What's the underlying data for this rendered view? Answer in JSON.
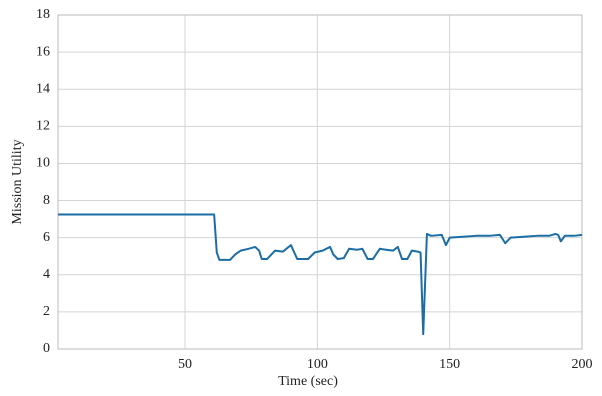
{
  "chart_data": {
    "type": "line",
    "x_label": "Time (sec)",
    "y_label": "Mission Utility",
    "x": [
      2,
      61,
      62,
      63,
      67,
      69,
      71,
      74,
      76.5,
      78,
      79,
      81,
      84,
      87,
      90,
      92.4,
      96.5,
      99,
      102,
      104.8,
      106,
      107.7,
      110,
      112,
      115,
      117,
      119,
      121,
      123.6,
      126,
      128.6,
      130.4,
      132,
      134,
      135.7,
      138,
      139,
      140,
      141.4,
      143,
      147,
      148.6,
      150,
      155,
      160,
      165,
      169,
      171,
      173,
      178,
      183,
      187.6,
      190,
      191,
      192,
      193.5,
      197,
      200
    ],
    "series": [
      {
        "name": "Mission Utility",
        "color": "#1b6ea5",
        "values": [
          7.25,
          7.25,
          5.2,
          4.8,
          4.8,
          5.1,
          5.3,
          5.4,
          5.5,
          5.3,
          4.85,
          4.85,
          5.3,
          5.25,
          5.6,
          4.85,
          4.85,
          5.2,
          5.3,
          5.5,
          5.1,
          4.85,
          4.9,
          5.4,
          5.35,
          5.4,
          4.85,
          4.85,
          5.4,
          5.35,
          5.3,
          5.5,
          4.85,
          4.85,
          5.3,
          5.25,
          5.2,
          0.8,
          6.2,
          6.1,
          6.15,
          5.6,
          6.0,
          6.05,
          6.1,
          6.1,
          6.15,
          5.7,
          6.0,
          6.05,
          6.1,
          6.1,
          6.2,
          6.15,
          5.8,
          6.1,
          6.1,
          6.15
        ]
      }
    ],
    "xlim": [
      2,
      200
    ],
    "ylim": [
      0,
      18
    ],
    "xticks": [
      50,
      100,
      150,
      200
    ],
    "yticks": [
      0,
      2,
      4,
      6,
      8,
      10,
      12,
      14,
      16,
      18
    ],
    "grid": true
  }
}
